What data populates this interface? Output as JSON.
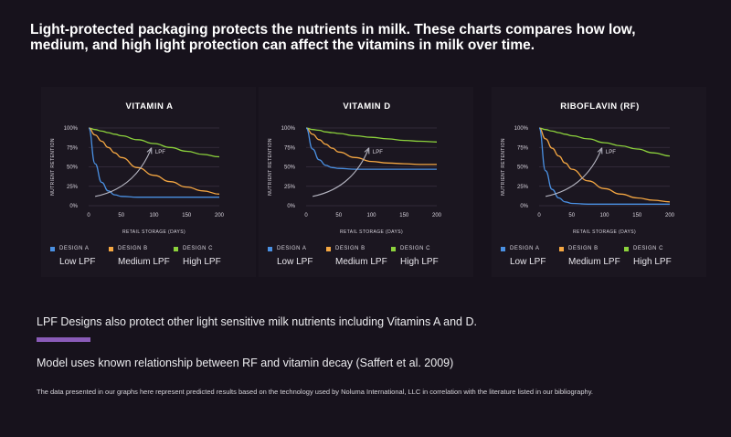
{
  "headline": "Light-protected packaging protects the nutrients in milk. These charts compares how low, medium, and high light protection can affect the vitamins in milk over time.",
  "colors": {
    "design_a": "#4a90e2",
    "design_b": "#f5a742",
    "design_c": "#8cd23c",
    "lpf_arrow": "#b8b8c4",
    "grid": "#3a3140",
    "accent_bar": "#8a5bb8"
  },
  "chart_data": [
    {
      "type": "line",
      "title": "VITAMIN A",
      "xlabel": "RETAIL STORAGE (DAYS)",
      "ylabel": "NUTRIENT RETENTION",
      "xlim": [
        0,
        200
      ],
      "ylim": [
        0,
        100
      ],
      "x_ticks": [
        "0",
        "50",
        "100",
        "150",
        "200"
      ],
      "y_ticks": [
        "0%",
        "25%",
        "50%",
        "75%",
        "100%"
      ],
      "grid": true,
      "annotation": "LPF",
      "x": [
        0,
        10,
        20,
        30,
        40,
        50,
        75,
        100,
        125,
        150,
        175,
        200
      ],
      "series": [
        {
          "name": "DESIGN A",
          "color_key": "design_a",
          "values": [
            100,
            54,
            30,
            19,
            14,
            12,
            11,
            11,
            11,
            11,
            11,
            11
          ]
        },
        {
          "name": "DESIGN B",
          "color_key": "design_b",
          "values": [
            100,
            91,
            83,
            75,
            68,
            62,
            49,
            39,
            31,
            24,
            19,
            15
          ]
        },
        {
          "name": "DESIGN C",
          "color_key": "design_c",
          "values": [
            100,
            98,
            96,
            94,
            92,
            90,
            85,
            80,
            75,
            70,
            66,
            63
          ]
        }
      ],
      "legend_desc": [
        "Low LPF",
        "Medium LPF",
        "High LPF"
      ]
    },
    {
      "type": "line",
      "title": "VITAMIN D",
      "xlabel": "RETAIL STORAGE (DAYS)",
      "ylabel": "NUTRIENT RETENTION",
      "xlim": [
        0,
        200
      ],
      "ylim": [
        0,
        100
      ],
      "x_ticks": [
        "0",
        "50",
        "100",
        "150",
        "200"
      ],
      "y_ticks": [
        "0%",
        "25%",
        "50%",
        "75%",
        "100%"
      ],
      "grid": true,
      "annotation": "LPF",
      "x": [
        0,
        10,
        20,
        30,
        40,
        50,
        75,
        100,
        125,
        150,
        175,
        200
      ],
      "series": [
        {
          "name": "DESIGN A",
          "color_key": "design_a",
          "values": [
            100,
            73,
            59,
            52,
            49,
            48,
            47,
            47,
            47,
            47,
            47,
            47
          ]
        },
        {
          "name": "DESIGN B",
          "color_key": "design_b",
          "values": [
            100,
            92,
            85,
            79,
            74,
            69,
            62,
            57,
            55,
            54,
            53,
            53
          ]
        },
        {
          "name": "DESIGN C",
          "color_key": "design_c",
          "values": [
            100,
            98,
            97,
            95,
            94,
            93,
            90,
            88,
            86,
            84,
            83,
            82
          ]
        }
      ],
      "legend_desc": [
        "Low LPF",
        "Medium LPF",
        "High LPF"
      ]
    },
    {
      "type": "line",
      "title": "RIBOFLAVIN (RF)",
      "xlabel": "RETAIL STORAGE (DAYS)",
      "ylabel": "NUTRIENT RETENTION",
      "xlim": [
        0,
        200
      ],
      "ylim": [
        0,
        100
      ],
      "x_ticks": [
        "0",
        "50",
        "100",
        "150",
        "200"
      ],
      "y_ticks": [
        "0%",
        "25%",
        "50%",
        "75%",
        "100%"
      ],
      "grid": true,
      "annotation": "LPF",
      "x": [
        0,
        10,
        20,
        30,
        40,
        50,
        75,
        100,
        125,
        150,
        175,
        200
      ],
      "series": [
        {
          "name": "DESIGN A",
          "color_key": "design_a",
          "values": [
            100,
            45,
            21,
            10,
            5,
            3,
            2,
            2,
            2,
            2,
            2,
            2
          ]
        },
        {
          "name": "DESIGN B",
          "color_key": "design_b",
          "values": [
            100,
            86,
            74,
            64,
            55,
            47,
            32,
            22,
            15,
            10,
            7,
            5
          ]
        },
        {
          "name": "DESIGN C",
          "color_key": "design_c",
          "values": [
            100,
            98,
            96,
            94,
            92,
            90,
            86,
            81,
            77,
            73,
            68,
            64
          ]
        }
      ],
      "legend_desc": [
        "Low LPF",
        "Medium LPF",
        "High LPF"
      ]
    }
  ],
  "note_1": "LPF Designs also protect other light sensitive milk nutrients including Vitamins A and D.",
  "note_2": "Model uses known relationship between RF and vitamin decay (Saffert et al. 2009)",
  "disclaimer": "The data presented in our graphs here  represent predicted results based on the technology used by Noluma International, LLC in correlation with the literature listed in our bibliography."
}
